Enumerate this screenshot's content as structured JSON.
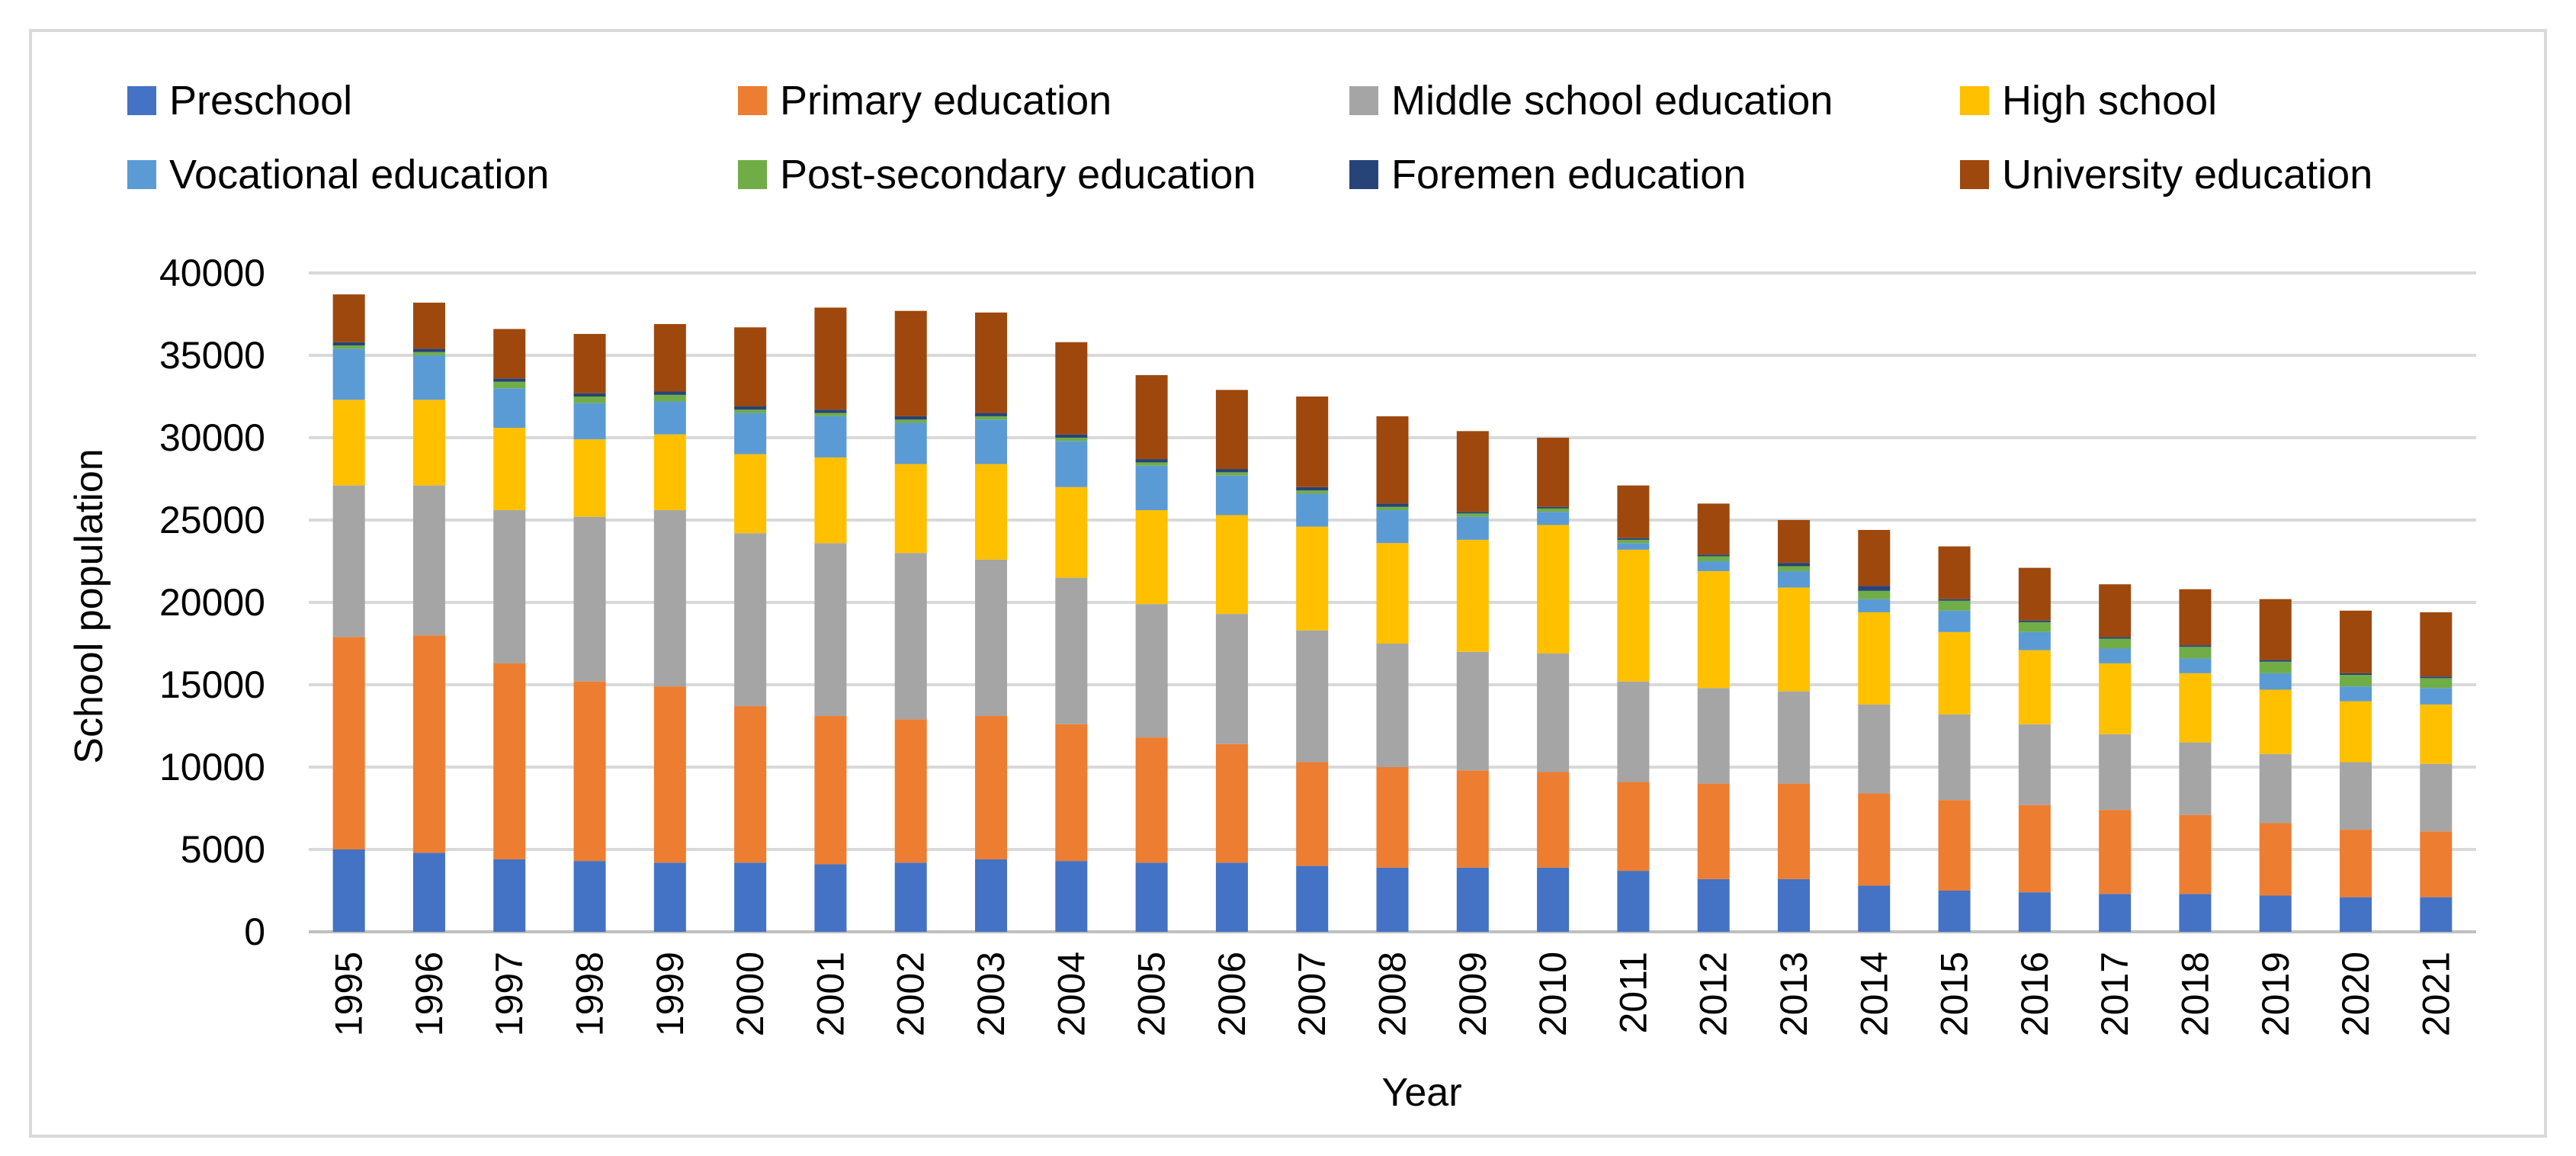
{
  "chart_data": {
    "type": "bar",
    "stacked": true,
    "title": "",
    "xlabel": "Year",
    "ylabel": "School population",
    "ylim": [
      0,
      40000
    ],
    "yticks": [
      0,
      5000,
      10000,
      15000,
      20000,
      25000,
      30000,
      35000,
      40000
    ],
    "grid": true,
    "legend_position": "top",
    "categories": [
      "1995",
      "1996",
      "1997",
      "1998",
      "1999",
      "2000",
      "2001",
      "2002",
      "2003",
      "2004",
      "2005",
      "2006",
      "2007",
      "2008",
      "2009",
      "2010",
      "2011",
      "2012",
      "2013",
      "2014",
      "2015",
      "2016",
      "2017",
      "2018",
      "2019",
      "2020",
      "2021"
    ],
    "series": [
      {
        "name": "Preschool",
        "color": "#4472C4",
        "values": [
          5000,
          4800,
          4400,
          4300,
          4200,
          4200,
          4100,
          4200,
          4400,
          4300,
          4200,
          4200,
          4000,
          3900,
          3900,
          3900,
          3700,
          3200,
          3200,
          2800,
          2500,
          2400,
          2300,
          2300,
          2200,
          2100,
          2100
        ]
      },
      {
        "name": "Primary education",
        "color": "#ED7D31",
        "values": [
          12900,
          13200,
          11900,
          10900,
          10700,
          9500,
          9000,
          8700,
          8700,
          8300,
          7600,
          7200,
          6300,
          6100,
          5900,
          5800,
          5400,
          5800,
          5800,
          5600,
          5500,
          5300,
          5100,
          4800,
          4400,
          4100,
          4000
        ]
      },
      {
        "name": "Middle school education",
        "color": "#A5A5A5",
        "values": [
          9200,
          9100,
          9300,
          10000,
          10700,
          10500,
          10500,
          10100,
          9500,
          8900,
          8100,
          7900,
          8000,
          7500,
          7200,
          7200,
          6100,
          5800,
          5600,
          5400,
          5200,
          4900,
          4600,
          4400,
          4200,
          4100,
          4100
        ]
      },
      {
        "name": "High school",
        "color": "#FFC000",
        "values": [
          5200,
          5200,
          5000,
          4700,
          4600,
          4800,
          5200,
          5400,
          5800,
          5500,
          5700,
          6000,
          6300,
          6100,
          6800,
          7800,
          8000,
          7100,
          6300,
          5600,
          5000,
          4500,
          4300,
          4200,
          3900,
          3700,
          3600
        ]
      },
      {
        "name": "Vocational education",
        "color": "#5B9BD5",
        "values": [
          3100,
          2700,
          2400,
          2200,
          2000,
          2500,
          2500,
          2500,
          2700,
          2800,
          2700,
          2400,
          2000,
          2000,
          1400,
          800,
          400,
          600,
          1000,
          800,
          1300,
          1100,
          900,
          900,
          1000,
          900,
          1000
        ]
      },
      {
        "name": "Post-secondary education",
        "color": "#70AD47",
        "values": [
          200,
          200,
          400,
          400,
          400,
          200,
          200,
          200,
          200,
          200,
          200,
          200,
          200,
          200,
          200,
          200,
          200,
          300,
          300,
          500,
          600,
          600,
          600,
          700,
          700,
          700,
          600
        ]
      },
      {
        "name": "Foremen education",
        "color": "#264478",
        "values": [
          200,
          200,
          200,
          200,
          200,
          200,
          200,
          200,
          200,
          200,
          200,
          200,
          200,
          200,
          100,
          100,
          100,
          100,
          200,
          300,
          100,
          100,
          100,
          100,
          100,
          100,
          100
        ]
      },
      {
        "name": "University education",
        "color": "#9E480E",
        "values": [
          2900,
          2800,
          3000,
          3600,
          4100,
          4800,
          6200,
          6400,
          6100,
          5600,
          5100,
          4800,
          5500,
          5300,
          4900,
          4200,
          3200,
          3100,
          2600,
          3400,
          3200,
          3200,
          3200,
          3400,
          3700,
          3800,
          3900
        ]
      }
    ]
  }
}
